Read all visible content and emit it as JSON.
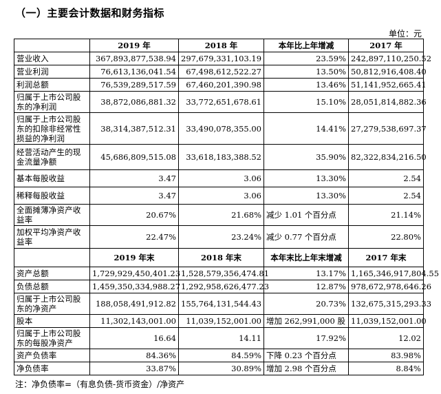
{
  "section_title": "（一）主要会计数据和财务指标",
  "unit": "单位：元",
  "headers": {
    "first": [
      "",
      "2019 年",
      "2018 年",
      "本年比上年增减",
      "2017 年"
    ],
    "second": [
      "",
      "2019 年末",
      "2018 年末",
      "本年末比上年末增减",
      "2017 年末"
    ]
  },
  "rows_income": [
    {
      "label": "营业收入",
      "v2019": "367,893,877,538.94",
      "v2018": "297,679,331,103.19",
      "change": "23.59%",
      "v2017": "242,897,110,250.52"
    },
    {
      "label": "营业利润",
      "v2019": "76,613,136,041.54",
      "v2018": "67,498,612,522.27",
      "change": "13.50%",
      "v2017": "50,812,916,408.40"
    },
    {
      "label": "利润总额",
      "v2019": "76,539,289,517.59",
      "v2018": "67,460,201,390.98",
      "change": "13.46%",
      "v2017": "51,141,952,665.41"
    },
    {
      "label": "归属于上市公司股东的净利润",
      "v2019": "38,872,086,881.32",
      "v2018": "33,772,651,678.61",
      "change": "15.10%",
      "v2017": "28,051,814,882.36"
    },
    {
      "label": "归属于上市公司股东的扣除非经常性损益的净利润",
      "v2019": "38,314,387,512.31",
      "v2018": "33,490,078,355.00",
      "change": "14.41%",
      "v2017": "27,279,538,697.37"
    },
    {
      "label": "经营活动产生的现金流量净额",
      "v2019": "45,686,809,515.08",
      "v2018": "33,618,183,388.52",
      "change": "35.90%",
      "v2017": "82,322,834,216.50"
    },
    {
      "label": "基本每股收益",
      "v2019": "3.47",
      "v2018": "3.06",
      "change": "13.30%",
      "v2017": "2.54"
    },
    {
      "label": "稀释每股收益",
      "v2019": "3.47",
      "v2018": "3.06",
      "change": "13.30%",
      "v2017": "2.54"
    },
    {
      "label": "全面摊薄净资产收益率",
      "v2019": "20.67%",
      "v2018": "21.68%",
      "change": "减少 1.01 个百分点",
      "v2017": "21.14%"
    },
    {
      "label": "加权平均净资产收益率",
      "v2019": "22.47%",
      "v2018": "23.24%",
      "change": "减少 0.77 个百分点",
      "v2017": "22.80%"
    }
  ],
  "rows_balance": [
    {
      "label": "资产总额",
      "v2019": "1,729,929,450,401.23",
      "v2018": "1,528,579,356,474.81",
      "change": "13.17%",
      "v2017": "1,165,346,917,804.55"
    },
    {
      "label": "负债总额",
      "v2019": "1,459,350,334,988.27",
      "v2018": "1,292,958,626,477.23",
      "change": "12.87%",
      "v2017": "978,672,978,646.26"
    },
    {
      "label": "归属于上市公司股东的净资产",
      "v2019": "188,058,491,912.82",
      "v2018": "155,764,131,544.43",
      "change": "20.73%",
      "v2017": "132,675,315,293.33"
    },
    {
      "label": "股本",
      "v2019": "11,302,143,001.00",
      "v2018": "11,039,152,001.00",
      "change": "增加 262,991,000 股",
      "v2017": "11,039,152,001.00"
    },
    {
      "label": "归属于上市公司股东的每股净资产",
      "v2019": "16.64",
      "v2018": "14.11",
      "change": "17.92%",
      "v2017": "12.02"
    },
    {
      "label": "资产负债率",
      "v2019": "84.36%",
      "v2018": "84.59%",
      "change": "下降 0.23 个百分点",
      "v2017": "83.98%"
    },
    {
      "label": "净负债率",
      "v2019": "33.87%",
      "v2018": "30.89%",
      "change": "增加 2.98 个百分点",
      "v2017": "8.84%"
    }
  ],
  "note": "注：净负债率=（有息负债-货币资金）/净资产"
}
